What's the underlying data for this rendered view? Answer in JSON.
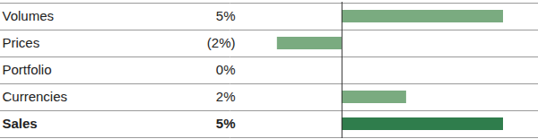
{
  "chart_data": {
    "type": "bar",
    "orientation": "horizontal",
    "categories": [
      "Volumes",
      "Prices",
      "Portfolio",
      "Currencies",
      "Sales"
    ],
    "values": [
      5,
      -2,
      0,
      2,
      5
    ],
    "value_labels": [
      "5%",
      "(2%)",
      "0%",
      "2%",
      "5%"
    ],
    "colors": [
      "#7aab80",
      "#7aab80",
      "#7aab80",
      "#7aab80",
      "#2f7d4c"
    ],
    "xlim": [
      -2.8,
      6
    ],
    "xticks": [
      0
    ],
    "data_labels": true,
    "tick_labels": false,
    "grid": false
  }
}
